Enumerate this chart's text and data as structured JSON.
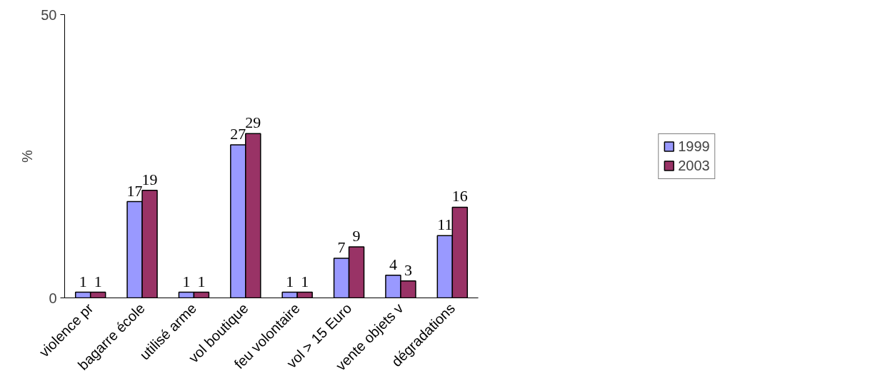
{
  "chart_data": {
    "type": "bar",
    "ylabel": "%",
    "categories": [
      "violence pr",
      "bagarre école",
      "utilisé arme",
      "vol boutique",
      "feu volontaire",
      "vol > 15 Euro",
      "vente objets v",
      "dégradations"
    ],
    "series": [
      {
        "name": "1999",
        "color": "#9999ff",
        "values": [
          1,
          17,
          1,
          27,
          1,
          7,
          4,
          11
        ]
      },
      {
        "name": "2003",
        "color": "#993366",
        "values": [
          1,
          19,
          1,
          29,
          1,
          9,
          3,
          16
        ]
      }
    ],
    "ylim": [
      0,
      50
    ],
    "yticks": [
      0,
      50
    ],
    "grid": false,
    "legend": "right",
    "data_labels": true
  }
}
